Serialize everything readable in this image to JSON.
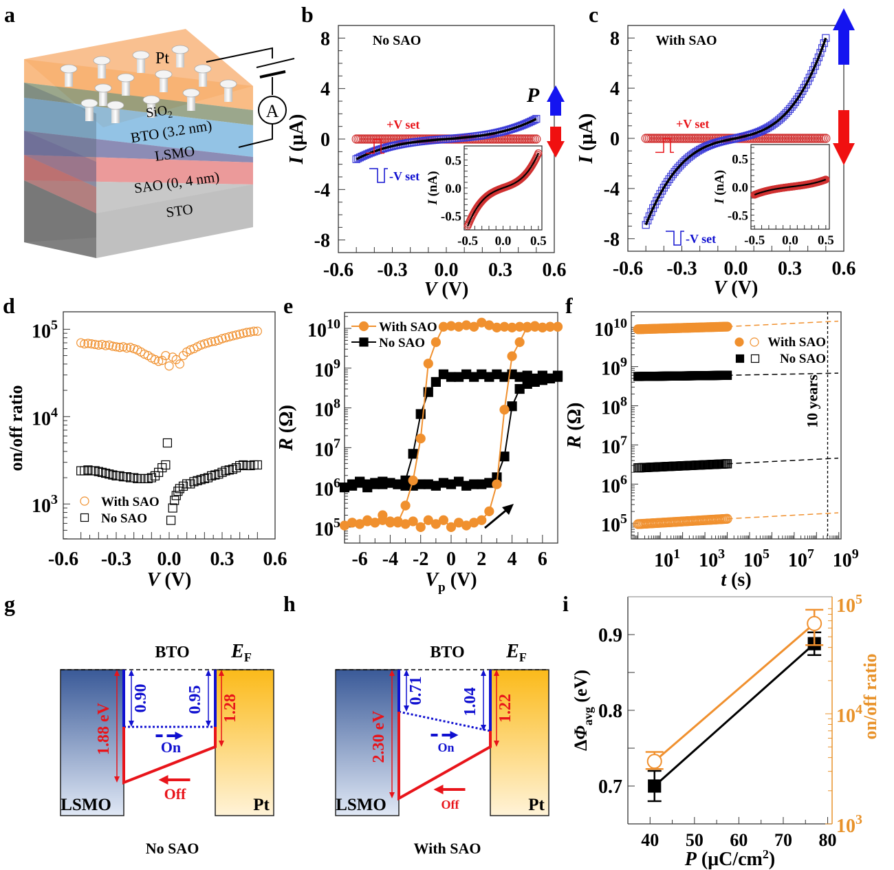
{
  "figure": {
    "panel_labels": [
      "a",
      "b",
      "c",
      "d",
      "e",
      "f",
      "g",
      "h",
      "i"
    ],
    "colors": {
      "orange": "#f0902e",
      "orange_axis": "#e8922a",
      "black": "#000000",
      "blue": "#1010d0",
      "blue_marker": "#3a3ad8",
      "red": "#e8141a",
      "red_marker": "#d03030",
      "arrow_blue": "#1414f0",
      "arrow_red": "#f01010"
    }
  },
  "panel_a": {
    "layers": [
      {
        "name": "Pt",
        "label": "Pt",
        "color": "#f8b070"
      },
      {
        "name": "SiO2",
        "label": "SiO",
        "sub": "2",
        "color": "#8a9878"
      },
      {
        "name": "BTO",
        "label": "BTO (3.2 nm)",
        "color": "#80b8e0"
      },
      {
        "name": "LSMO",
        "label": "LSMO",
        "color": "#7878a8"
      },
      {
        "name": "SAO",
        "label": "SAO (0, 4 nm)",
        "color": "#e88888"
      },
      {
        "name": "STO",
        "label": "STO",
        "color": "#bebebe"
      }
    ],
    "ammeter_label": "A"
  },
  "chart_data": [
    {
      "id": "b",
      "type": "scatter",
      "title": "No SAO",
      "xlabel": "V (V)",
      "ylabel": "I (μA)",
      "xlim": [
        -0.6,
        0.6
      ],
      "ylim": [
        -9,
        9
      ],
      "xticks": [
        -0.6,
        -0.3,
        0.0,
        0.3,
        0.6
      ],
      "xticklabels": [
        "-0.6",
        "-0.3",
        "0.0",
        "0.3",
        "0.6"
      ],
      "yticks": [
        -8,
        -4,
        0,
        4,
        8
      ],
      "yticklabels": [
        "-8",
        "-4",
        "0",
        "4",
        "8"
      ],
      "annotations": {
        "pos_set": "+V set",
        "neg_set": "-V set",
        "polarization": "P"
      },
      "series": [
        {
          "name": "-V set (ON)",
          "marker": "square-open",
          "color": "#3a3ad8",
          "model": "cubic",
          "x_range": [
            -0.5,
            0.5
          ],
          "y_at_min": -1.6,
          "y_at_max": 1.6,
          "linear_frac": 0.35
        },
        {
          "name": "+V set (OFF)",
          "marker": "circle-open",
          "color": "#d03030",
          "model": "flat",
          "x_range": [
            -0.5,
            0.5
          ],
          "value": 0
        }
      ],
      "inset": {
        "xlabel": "",
        "ylabel": "I (nA)",
        "xlim": [
          -0.55,
          0.55
        ],
        "ylim": [
          -0.75,
          0.75
        ],
        "xticks": [
          -0.5,
          0.0,
          0.5
        ],
        "xticklabels": [
          "-0.5",
          "0.0",
          "0.5"
        ],
        "yticks": [
          -0.5,
          0.0,
          0.5
        ],
        "yticklabels": [
          "-0.5",
          "0.0",
          "0.5"
        ],
        "series": {
          "marker": "circle-open",
          "color": "#d03030",
          "model": "cubic",
          "x_range": [
            -0.5,
            0.5
          ],
          "y_at_min": -0.68,
          "y_at_max": 0.62,
          "linear_frac": 0.35
        }
      }
    },
    {
      "id": "c",
      "type": "scatter",
      "title": "With SAO",
      "xlabel": "V (V)",
      "ylabel": "I (μA)",
      "xlim": [
        -0.6,
        0.6
      ],
      "ylim": [
        -9,
        9
      ],
      "xticks": [
        -0.6,
        -0.3,
        0.0,
        0.3,
        0.6
      ],
      "xticklabels": [
        "-0.6",
        "-0.3",
        "0.0",
        "0.3",
        "0.6"
      ],
      "yticks": [
        -8,
        -4,
        0,
        4,
        8
      ],
      "yticklabels": [
        "-8",
        "-4",
        "0",
        "4",
        "8"
      ],
      "annotations": {
        "pos_set": "+V set",
        "neg_set": "-V set"
      },
      "series": [
        {
          "name": "-V set (ON)",
          "marker": "square-open",
          "color": "#3a3ad8",
          "model": "cubic",
          "x_range": [
            -0.5,
            0.5
          ],
          "y_at_min": -6.9,
          "y_at_max": 8.0,
          "linear_frac": 0.2
        },
        {
          "name": "+V set (OFF)",
          "marker": "circle-open",
          "color": "#d03030",
          "model": "flat",
          "x_range": [
            -0.5,
            0.5
          ],
          "value": 0
        }
      ],
      "inset": {
        "xlabel": "",
        "ylabel": "I (nA)",
        "xlim": [
          -0.55,
          0.55
        ],
        "ylim": [
          -0.75,
          0.75
        ],
        "xticks": [
          -0.5,
          0.0,
          0.5
        ],
        "xticklabels": [
          "-0.5",
          "0.0",
          "0.5"
        ],
        "yticks": [
          -0.5,
          0.0,
          0.5
        ],
        "yticklabels": [
          "-0.5",
          "0.0",
          "0.5"
        ],
        "series": {
          "marker": "circle-open",
          "color": "#d03030",
          "model": "cubic",
          "x_range": [
            -0.5,
            0.5
          ],
          "y_at_min": -0.14,
          "y_at_max": 0.13,
          "linear_frac": 0.6
        }
      }
    },
    {
      "id": "d",
      "type": "scatter",
      "title": "",
      "xlabel": "V (V)",
      "ylabel": "on/off ratio",
      "xlim": [
        -0.6,
        0.6
      ],
      "ylim_log": [
        2.6,
        5.2
      ],
      "yscale": "log",
      "xticks": [
        -0.6,
        -0.3,
        0.0,
        0.3,
        0.6
      ],
      "xticklabels": [
        "-0.6",
        "-0.3",
        "0.0",
        "0.3",
        "0.6"
      ],
      "yticks_exp": [
        3,
        4,
        5
      ],
      "legend": {
        "position": "bottom-left",
        "entries": [
          "With SAO",
          "No SAO"
        ]
      },
      "series": [
        {
          "name": "With SAO",
          "marker": "circle-open",
          "color": "#f0902e",
          "x": [
            -0.5,
            -0.48,
            -0.46,
            -0.44,
            -0.42,
            -0.4,
            -0.38,
            -0.36,
            -0.34,
            -0.32,
            -0.3,
            -0.28,
            -0.26,
            -0.24,
            -0.22,
            -0.2,
            -0.18,
            -0.16,
            -0.14,
            -0.12,
            -0.1,
            -0.08,
            -0.06,
            -0.04,
            -0.02,
            0.0,
            0.02,
            0.04,
            0.06,
            0.08,
            0.1,
            0.12,
            0.14,
            0.16,
            0.18,
            0.2,
            0.22,
            0.24,
            0.26,
            0.28,
            0.3,
            0.32,
            0.34,
            0.36,
            0.38,
            0.4,
            0.42,
            0.44,
            0.46,
            0.48,
            0.5
          ],
          "y": [
            70000,
            68000,
            69000,
            68000,
            67000,
            66000,
            67000,
            65000,
            66000,
            64000,
            63000,
            62000,
            63000,
            61000,
            62000,
            60000,
            58000,
            55000,
            52000,
            50000,
            47000,
            45000,
            43000,
            44000,
            50000,
            38000,
            48000,
            45000,
            40000,
            50000,
            55000,
            58000,
            60000,
            63000,
            66000,
            68000,
            70000,
            72000,
            73000,
            75000,
            78000,
            80000,
            82000,
            84000,
            86000,
            88000,
            90000,
            92000,
            93000,
            95000,
            95000
          ]
        },
        {
          "name": "No SAO",
          "marker": "square-open",
          "color": "#000000",
          "x": [
            -0.5,
            -0.48,
            -0.46,
            -0.44,
            -0.42,
            -0.4,
            -0.38,
            -0.36,
            -0.34,
            -0.32,
            -0.3,
            -0.28,
            -0.26,
            -0.24,
            -0.22,
            -0.2,
            -0.18,
            -0.16,
            -0.14,
            -0.12,
            -0.1,
            -0.08,
            -0.06,
            -0.04,
            -0.02,
            -0.01,
            0.01,
            0.02,
            0.03,
            0.04,
            0.05,
            0.06,
            0.08,
            0.1,
            0.12,
            0.14,
            0.16,
            0.18,
            0.2,
            0.22,
            0.24,
            0.26,
            0.28,
            0.3,
            0.32,
            0.34,
            0.36,
            0.38,
            0.4,
            0.42,
            0.44,
            0.46,
            0.48,
            0.5
          ],
          "y": [
            2400,
            2400,
            2450,
            2400,
            2400,
            2350,
            2300,
            2250,
            2200,
            2150,
            2100,
            2100,
            2050,
            2050,
            2000,
            2000,
            1950,
            1950,
            1950,
            1950,
            2000,
            2100,
            2300,
            2600,
            2800,
            5000,
            650,
            900,
            1100,
            1250,
            1400,
            1500,
            1600,
            1700,
            1700,
            1800,
            1850,
            1900,
            1950,
            2000,
            2100,
            2150,
            2200,
            2300,
            2400,
            2450,
            2500,
            2600,
            2750,
            2800,
            2750,
            2750,
            2800,
            2800
          ]
        }
      ]
    },
    {
      "id": "e",
      "type": "line",
      "title": "",
      "xlabel": "Vp (V)",
      "ylabel": "R (Ω)",
      "xlim": [
        -7,
        7
      ],
      "ylim_log": [
        4.6,
        10.4
      ],
      "yscale": "log",
      "xticks": [
        -6,
        -4,
        -2,
        0,
        2,
        4,
        6
      ],
      "xticklabels": [
        "-6",
        "-4",
        "-2",
        "0",
        "2",
        "4",
        "6"
      ],
      "yticks_exp": [
        5,
        6,
        7,
        8,
        9,
        10
      ],
      "legend": {
        "position": "top-left",
        "entries": [
          "With SAO",
          "No SAO"
        ]
      },
      "series": [
        {
          "name": "With SAO",
          "marker": "circle-filled",
          "color": "#f0902e",
          "x": [
            7,
            6.5,
            6,
            5.5,
            5,
            4.5,
            4,
            3.5,
            3,
            2.5,
            2,
            1.5,
            1,
            0.5,
            0,
            -0.5,
            -1,
            -1.5,
            -2,
            -2.5,
            -3,
            -3.5,
            -4,
            -4.5,
            -5,
            -5.5,
            -6,
            -6.5,
            -7,
            -6.5,
            -6,
            -5.5,
            -5,
            -4.5,
            -4,
            -3.5,
            -3,
            -2.5,
            -2,
            -1.5,
            -1,
            -0.5,
            0,
            0.5,
            1,
            1.5,
            2,
            2.5,
            3,
            3.5,
            4,
            4.5,
            5,
            5.5,
            6,
            6.5,
            7
          ],
          "y": [
            11000000000.0,
            11000000000.0,
            10500000000.0,
            11500000000.0,
            10500000000.0,
            11000000000.0,
            10500000000.0,
            11000000000.0,
            10500000000.0,
            12000000000.0,
            14000000000.0,
            11000000000.0,
            12000000000.0,
            11000000000.0,
            11500000000.0,
            11000000000.0,
            4500000000.0,
            1300000000.0,
            17000000.0,
            1500000.0,
            350000.0,
            130000.0,
            130000.0,
            150000.0,
            130000.0,
            150000.0,
            120000.0,
            130000.0,
            110000.0,
            130000.0,
            120000.0,
            140000.0,
            130000.0,
            200000.0,
            140000.0,
            140000.0,
            120000.0,
            140000.0,
            100000.0,
            150000.0,
            120000.0,
            150000.0,
            100000.0,
            130000.0,
            110000.0,
            130000.0,
            150000.0,
            250000.0,
            1200000.0,
            90000000.0,
            2000000000.0,
            4500000000.0,
            11000000000.0,
            11000000000.0,
            10500000000.0,
            11000000000.0,
            11000000000.0
          ]
        },
        {
          "name": "No SAO",
          "marker": "square-filled",
          "color": "#000000",
          "x": [
            7,
            6.5,
            6,
            5.5,
            5,
            4.5,
            4,
            3.5,
            3,
            2.5,
            2,
            1.5,
            1,
            0.5,
            0,
            -0.5,
            -1,
            -1.5,
            -2,
            -2.5,
            -3,
            -3.5,
            -4,
            -4.5,
            -5,
            -5.5,
            -6,
            -6.5,
            -7,
            -6.5,
            -6,
            -5.5,
            -5,
            -4.5,
            -4,
            -3.5,
            -3,
            -2.5,
            -2,
            -1.5,
            -1,
            -0.5,
            0,
            0.5,
            1,
            1.5,
            2,
            2.5,
            3,
            3.5,
            4,
            4.5,
            5,
            5.5,
            6,
            6.5,
            7
          ],
          "y": [
            650000000.0,
            550000000.0,
            650000000.0,
            550000000.0,
            650000000.0,
            600000000.0,
            700000000.0,
            600000000.0,
            700000000.0,
            600000000.0,
            700000000.0,
            600000000.0,
            700000000.0,
            600000000.0,
            600000000.0,
            700000000.0,
            450000000.0,
            250000000.0,
            70000000.0,
            7000000.0,
            1500000.0,
            1200000.0,
            1300000.0,
            1400000.0,
            1200000.0,
            1000000.0,
            1300000.0,
            1100000.0,
            1000000.0,
            1200000.0,
            1400000.0,
            1200000.0,
            1300000.0,
            1200000.0,
            1300000.0,
            1200000.0,
            1100000.0,
            1100000.0,
            1200000.0,
            1200000.0,
            1100000.0,
            1300000.0,
            1200000.0,
            1400000.0,
            1100000.0,
            1200000.0,
            1200000.0,
            1300000.0,
            1800000.0,
            6000000.0,
            110000000.0,
            300000000.0,
            400000000.0,
            450000000.0,
            500000000.0,
            550000000.0,
            600000000.0
          ]
        }
      ]
    },
    {
      "id": "f",
      "type": "scatter",
      "title": "",
      "xlabel": "t (s)",
      "ylabel": "R (Ω)",
      "xscale": "log",
      "yscale": "log",
      "xlim_log": [
        -0.3,
        9.1
      ],
      "ylim_log": [
        4.6,
        10.4
      ],
      "xticks_exp": [
        1,
        3,
        5,
        7,
        9
      ],
      "yticks_exp": [
        5,
        6,
        7,
        8,
        9,
        10
      ],
      "annotations": {
        "ten_years": "10 years",
        "ten_years_t_s": 315360000
      },
      "legend": {
        "position": "top-right",
        "entries": [
          "With SAO",
          "No SAO"
        ]
      },
      "series": [
        {
          "name": "With SAO (OFF)",
          "marker": "circle-filled",
          "color": "#f0902e",
          "t_range_s": [
            1,
            10000
          ],
          "R_start": 9000000000.0,
          "R_end": 10500000000.0,
          "extrap_R_at_1e9": 14500000000.0
        },
        {
          "name": "No SAO (OFF)",
          "marker": "square-filled",
          "color": "#000000",
          "t_range_s": [
            1,
            10000
          ],
          "R_start": 560000000.0,
          "R_end": 600000000.0,
          "extrap_R_at_1e9": 680000000.0
        },
        {
          "name": "No SAO (ON)",
          "marker": "square-open",
          "color": "#000000",
          "t_range_s": [
            1,
            10000
          ],
          "R_start": 2600000.0,
          "R_end": 3300000.0,
          "extrap_R_at_1e9": 4600000.0
        },
        {
          "name": "With SAO (ON)",
          "marker": "circle-open",
          "color": "#f0902e",
          "t_range_s": [
            1,
            10000
          ],
          "R_start": 95000.0,
          "R_end": 130000.0,
          "extrap_R_at_1e9": 185000.0
        }
      ]
    },
    {
      "id": "i",
      "type": "line",
      "title": "",
      "xlabel": "P (μC/cm²)",
      "ylabel": "ΔΦavg (eV)",
      "ylabel_right": "on/off ratio",
      "xlim": [
        35,
        81
      ],
      "ylim": [
        0.65,
        0.95
      ],
      "xticks": [
        40,
        50,
        60,
        70,
        80
      ],
      "xticklabels": [
        "40",
        "50",
        "60",
        "70",
        "80"
      ],
      "yticks": [
        0.7,
        0.8,
        0.9
      ],
      "yticklabels": [
        "0.7",
        "0.8",
        "0.9"
      ],
      "yright_log": [
        3,
        5
      ],
      "yright_ticks_exp": [
        3,
        4,
        5
      ],
      "series": [
        {
          "name": "ΔΦavg",
          "axis": "left",
          "marker": "square-filled",
          "color": "#000000",
          "x": [
            41,
            77
          ],
          "y": [
            0.7,
            0.888
          ],
          "err": [
            0.02,
            0.015
          ]
        },
        {
          "name": "on/off ratio",
          "axis": "right",
          "marker": "circle-open",
          "color": "#f0902e",
          "x": [
            41,
            77
          ],
          "y": [
            3700,
            66000
          ],
          "err_low": [
            3150,
            42000
          ],
          "err_high": [
            4500,
            88000
          ]
        }
      ]
    }
  ],
  "panel_g": {
    "caption": "No SAO",
    "bto": "BTO",
    "ef": "E",
    "ef_sub": "F",
    "lsmo": "LSMO",
    "pt": "Pt",
    "left_barrier": "1.88 eV",
    "on_left": "0.90",
    "on_right": "0.95",
    "right_barrier": "1.28",
    "on": "On",
    "off": "Off"
  },
  "panel_h": {
    "caption": "With SAO",
    "bto": "BTO",
    "ef": "E",
    "ef_sub": "F",
    "lsmo": "LSMO",
    "pt": "Pt",
    "left_barrier": "2.30 eV",
    "on_left": "0.71",
    "on_right": "1.04",
    "right_barrier": "1.22",
    "on": "On",
    "off": "Off"
  }
}
